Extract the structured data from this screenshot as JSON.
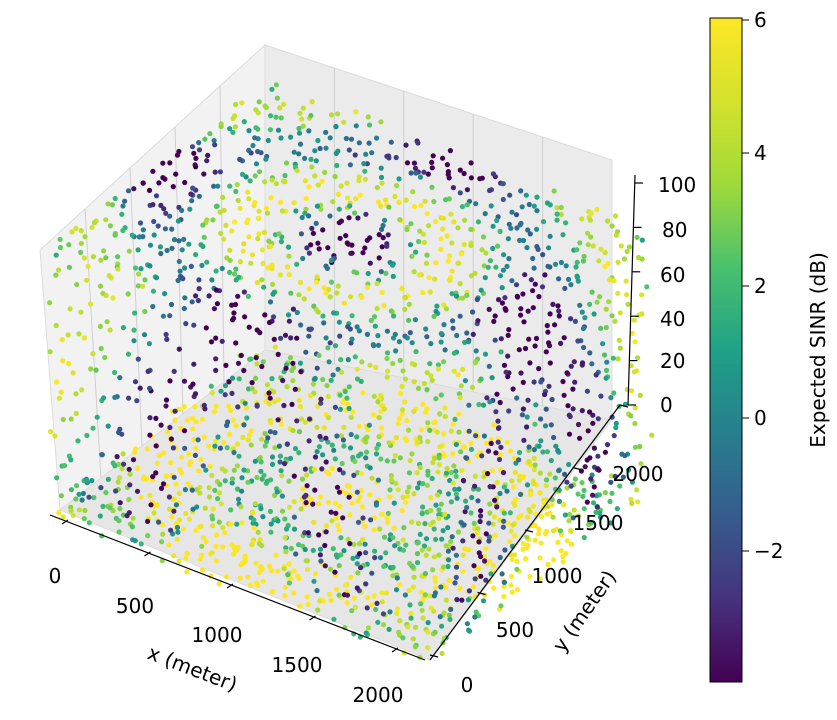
{
  "chart_data": {
    "type": "scatter",
    "projection": "3d",
    "xlabel": "x (meter)",
    "ylabel": "y (meter)",
    "zlabel": "",
    "xlim": [
      0,
      2000
    ],
    "ylim": [
      0,
      2000
    ],
    "zlim": [
      0,
      100
    ],
    "xticks": [
      "0",
      "500",
      "1000",
      "1500",
      "2000"
    ],
    "yticks": [
      "0",
      "500",
      "1000",
      "1500",
      "2000"
    ],
    "zticks": [
      "0",
      "20",
      "40",
      "60",
      "80",
      "100"
    ],
    "grid": true,
    "colormap": "viridis",
    "colorbar": {
      "label": "Expected SINR (dB)",
      "min": -3.8,
      "max": 6,
      "ticks": [
        "6",
        "4",
        "2",
        "0",
        "−2"
      ],
      "tick_values": [
        6,
        4,
        2,
        0,
        -2
      ]
    },
    "points_description": "dense point cloud of receiver locations on a 3D grid colored by SINR",
    "grid_spacing": {
      "x": 100,
      "y": 100,
      "z": 10
    },
    "colors": {
      "viridis_low": "#440154",
      "viridis_mid": "#21918c",
      "viridis_high": "#fde725"
    }
  }
}
